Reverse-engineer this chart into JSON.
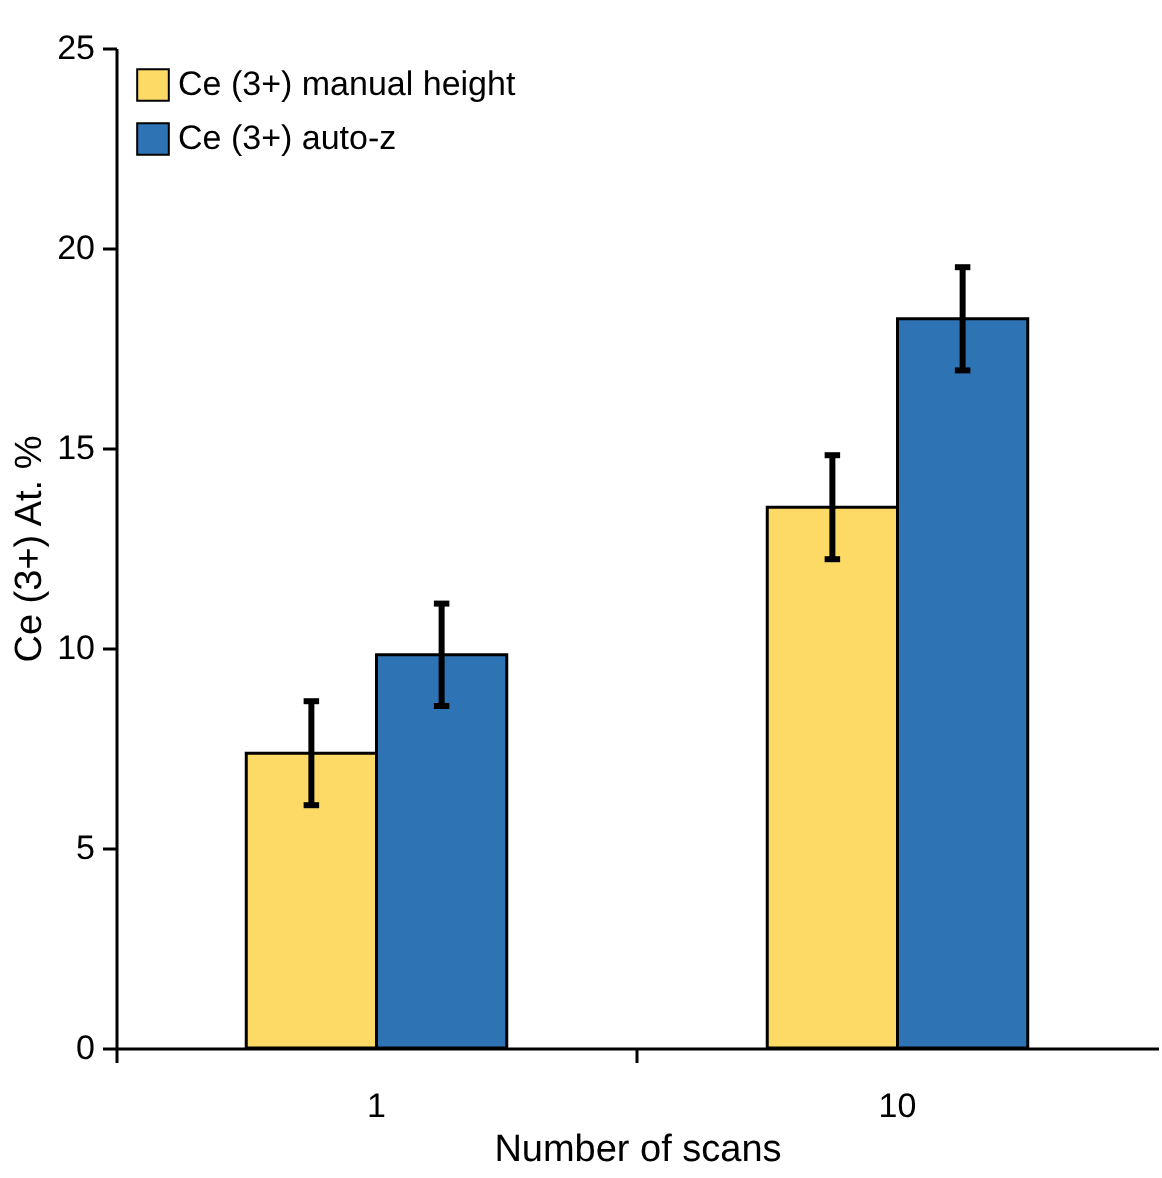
{
  "chart_data": {
    "type": "bar",
    "xlabel": "Number of scans",
    "ylabel": "Ce (3+) At. %",
    "categories": [
      "1",
      "10"
    ],
    "series": [
      {
        "name": "Ce (3+) manual height",
        "color": "#fdd966",
        "values": [
          7.37,
          13.52
        ],
        "errors": [
          1.3,
          1.3
        ]
      },
      {
        "name": "Ce (3+) auto-z",
        "color": "#2e74b5",
        "values": [
          9.83,
          18.23
        ],
        "errors": [
          1.28,
          1.29
        ]
      }
    ],
    "ylim": [
      0,
      25
    ],
    "yticks": [
      0,
      5,
      10,
      15,
      20,
      25
    ],
    "grid": false,
    "legend": "top left"
  }
}
